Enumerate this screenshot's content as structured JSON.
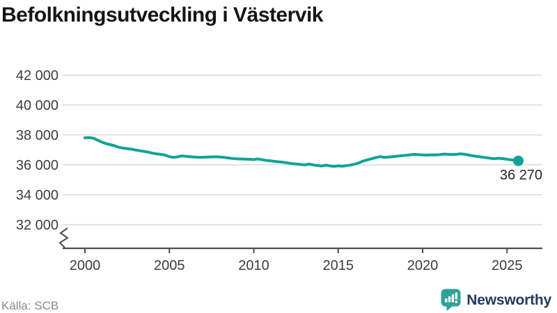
{
  "title": "Befolkningsutveckling i Västervik",
  "source": "Källa: SCB",
  "branding": {
    "name": "Newsworthy"
  },
  "colors": {
    "accent_teal": "#0fa396",
    "grid": "#e4e4e4",
    "axis": "#4d4d4d",
    "tick_text": "#3d3d3d",
    "end_label_text": "#262626",
    "source_text": "#8a8a8a",
    "brand_navy": "#233a5c",
    "brand_teal": "#2fa198"
  },
  "chart_data": {
    "type": "line",
    "title": "Befolkningsutveckling i Västervik",
    "xlabel": "",
    "ylabel": "",
    "grid": true,
    "legend": false,
    "y_axis_break": true,
    "xlim": [
      1998.7,
      2027.1
    ],
    "ylim": [
      32000,
      42000
    ],
    "x_ticks": [
      2000,
      2005,
      2010,
      2015,
      2020,
      2025
    ],
    "x_tick_labels": [
      "2000",
      "2005",
      "2010",
      "2015",
      "2020",
      "2025"
    ],
    "y_ticks": [
      32000,
      34000,
      36000,
      38000,
      40000,
      42000
    ],
    "y_tick_labels": [
      "32 000",
      "34 000",
      "36 000",
      "38 000",
      "40 000",
      "42 000"
    ],
    "end_label": "36 270",
    "end_point": {
      "x": 2025.67,
      "y": 36270
    },
    "x": [
      2000.0,
      2000.25,
      2000.5,
      2000.75,
      2001.0,
      2001.25,
      2001.5,
      2001.75,
      2002.0,
      2002.25,
      2002.5,
      2002.75,
      2003.0,
      2003.5,
      2003.75,
      2004.0,
      2004.25,
      2004.5,
      2004.75,
      2005.0,
      2005.25,
      2005.5,
      2005.75,
      2006.0,
      2006.25,
      2006.5,
      2006.75,
      2007.0,
      2007.5,
      2007.75,
      2008.0,
      2008.25,
      2008.5,
      2008.75,
      2009.0,
      2009.5,
      2009.75,
      2010.0,
      2010.25,
      2010.5,
      2010.75,
      2011.0,
      2011.25,
      2011.5,
      2011.75,
      2012.0,
      2012.25,
      2012.5,
      2012.75,
      2013.0,
      2013.25,
      2013.5,
      2013.75,
      2014.0,
      2014.25,
      2014.5,
      2014.75,
      2015.0,
      2015.25,
      2015.5,
      2015.75,
      2016.0,
      2016.25,
      2016.5,
      2016.75,
      2017.0,
      2017.25,
      2017.5,
      2017.75,
      2018.0,
      2018.25,
      2018.5,
      2018.75,
      2019.0,
      2019.25,
      2019.5,
      2019.75,
      2020.0,
      2020.25,
      2020.5,
      2020.75,
      2021.0,
      2021.25,
      2021.5,
      2021.75,
      2022.0,
      2022.25,
      2022.5,
      2022.75,
      2023.0,
      2023.25,
      2023.5,
      2023.75,
      2024.0,
      2024.25,
      2024.5,
      2024.75,
      2025.0,
      2025.25,
      2025.5,
      2025.67
    ],
    "y": [
      37810,
      37820,
      37780,
      37650,
      37520,
      37420,
      37350,
      37280,
      37170,
      37120,
      37080,
      37050,
      36990,
      36900,
      36850,
      36780,
      36730,
      36700,
      36650,
      36550,
      36500,
      36540,
      36600,
      36570,
      36540,
      36520,
      36500,
      36510,
      36530,
      36540,
      36520,
      36500,
      36460,
      36430,
      36400,
      36380,
      36370,
      36350,
      36400,
      36340,
      36300,
      36270,
      36230,
      36200,
      36170,
      36130,
      36080,
      36060,
      36030,
      35990,
      36050,
      36000,
      35960,
      35920,
      35980,
      35930,
      35900,
      35930,
      35910,
      35950,
      35990,
      36050,
      36150,
      36260,
      36340,
      36420,
      36490,
      36550,
      36500,
      36520,
      36550,
      36580,
      36610,
      36640,
      36670,
      36700,
      36680,
      36660,
      36650,
      36670,
      36660,
      36680,
      36720,
      36700,
      36690,
      36700,
      36740,
      36700,
      36650,
      36600,
      36560,
      36520,
      36480,
      36440,
      36410,
      36440,
      36420,
      36370,
      36330,
      36300,
      36270
    ]
  }
}
